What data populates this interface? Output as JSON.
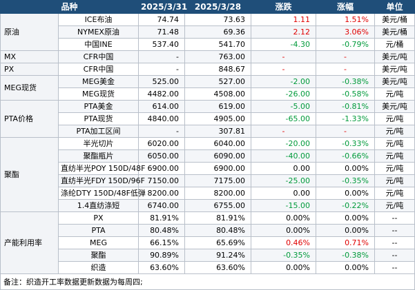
{
  "header": {
    "product": "品种",
    "date1": "2025/3/31",
    "date2": "2025/3/28",
    "change": "涨跌",
    "pct": "涨幅",
    "unit": "单位"
  },
  "rows": [
    {
      "category": "原油",
      "span": 3,
      "item": "ICE布油",
      "v1": "74.74",
      "v2": "73.63",
      "change": "1.11",
      "pct": "1.51%",
      "unit": "美元/桶",
      "dir": "up"
    },
    {
      "item": "NYMEX原油",
      "v1": "71.48",
      "v2": "69.36",
      "change": "2.12",
      "pct": "3.06%",
      "unit": "美元/桶",
      "dir": "up"
    },
    {
      "item": "中国INE",
      "v1": "537.40",
      "v2": "541.70",
      "change": "-4.30",
      "pct": "-0.79%",
      "unit": "元/桶",
      "dir": "down"
    },
    {
      "category": "MX",
      "span": 1,
      "item": "CFR中国",
      "v1": "-",
      "v2": "763.00",
      "change": "-",
      "pct": "-",
      "unit": "美元/吨",
      "dir": "up"
    },
    {
      "category": "PX",
      "span": 1,
      "item": "CFR中国",
      "v1": "-",
      "v2": "848.67",
      "change": "-",
      "pct": "-",
      "unit": "美元/吨",
      "dir": "up"
    },
    {
      "category": "MEG现货",
      "span": 2,
      "item": "MEG美金",
      "v1": "525.00",
      "v2": "527.00",
      "change": "-2.00",
      "pct": "-0.38%",
      "unit": "美元/吨",
      "dir": "down"
    },
    {
      "item": "MEG现货",
      "v1": "4482.00",
      "v2": "4508.00",
      "change": "-26.00",
      "pct": "-0.58%",
      "unit": "元/吨",
      "dir": "down"
    },
    {
      "category": "PTA价格",
      "span": 3,
      "item": "PTA美金",
      "v1": "614.00",
      "v2": "619.00",
      "change": "-5.00",
      "pct": "-0.81%",
      "unit": "美元/吨",
      "dir": "down"
    },
    {
      "item": "PTA现货",
      "v1": "4840.00",
      "v2": "4905.00",
      "change": "-65.00",
      "pct": "-1.33%",
      "unit": "元/吨",
      "dir": "down"
    },
    {
      "item": "PTA加工区间",
      "v1": "-",
      "v2": "307.81",
      "change": "-",
      "pct": "-",
      "unit": "元/吨",
      "dir": "up"
    },
    {
      "category": "聚酯",
      "span": 6,
      "item": "半光切片",
      "v1": "6020.00",
      "v2": "6040.00",
      "change": "-20.00",
      "pct": "-0.33%",
      "unit": "元/吨",
      "dir": "down"
    },
    {
      "item": "聚酯瓶片",
      "v1": "6050.00",
      "v2": "6090.00",
      "change": "-40.00",
      "pct": "-0.66%",
      "unit": "元/吨",
      "dir": "down"
    },
    {
      "item": "直纺半光POY 150D/48F",
      "v1": "6900.00",
      "v2": "6900.00",
      "change": "0.00",
      "pct": "0.00%",
      "unit": "元/吨",
      "dir": "none"
    },
    {
      "item": "直纺半光FDY 150D/96F",
      "v1": "7150.00",
      "v2": "7175.00",
      "change": "-25.00",
      "pct": "-0.35%",
      "unit": "元/吨",
      "dir": "down"
    },
    {
      "item": "涤纶DTY 150D/48F低弹",
      "v1": "8200.00",
      "v2": "8200.00",
      "change": "0.00",
      "pct": "0.00%",
      "unit": "元/吨",
      "dir": "none"
    },
    {
      "item": "1.4直纺涤短",
      "v1": "6740.00",
      "v2": "6755.00",
      "change": "-15.00",
      "pct": "-0.22%",
      "unit": "元/吨",
      "dir": "down"
    },
    {
      "category": "产能利用率",
      "span": 5,
      "item": "PX",
      "v1": "81.91%",
      "v2": "81.91%",
      "change": "0.00%",
      "pct": "0.00%",
      "unit": "--",
      "dir": "none"
    },
    {
      "item": "PTA",
      "v1": "80.48%",
      "v2": "80.48%",
      "change": "0.00%",
      "pct": "0.00%",
      "unit": "--",
      "dir": "none"
    },
    {
      "item": "MEG",
      "v1": "66.15%",
      "v2": "65.69%",
      "change": "0.46%",
      "pct": "0.71%",
      "unit": "--",
      "dir": "up"
    },
    {
      "item": "聚酯",
      "v1": "90.89%",
      "v2": "91.24%",
      "change": "-0.35%",
      "pct": "-0.38%",
      "unit": "--",
      "dir": "down"
    },
    {
      "item": "织造",
      "v1": "63.60%",
      "v2": "63.60%",
      "change": "0.00%",
      "pct": "0.00%",
      "unit": "--",
      "dir": "none"
    }
  ],
  "note": "备注：织造开工率数据更新数据为每周四;"
}
